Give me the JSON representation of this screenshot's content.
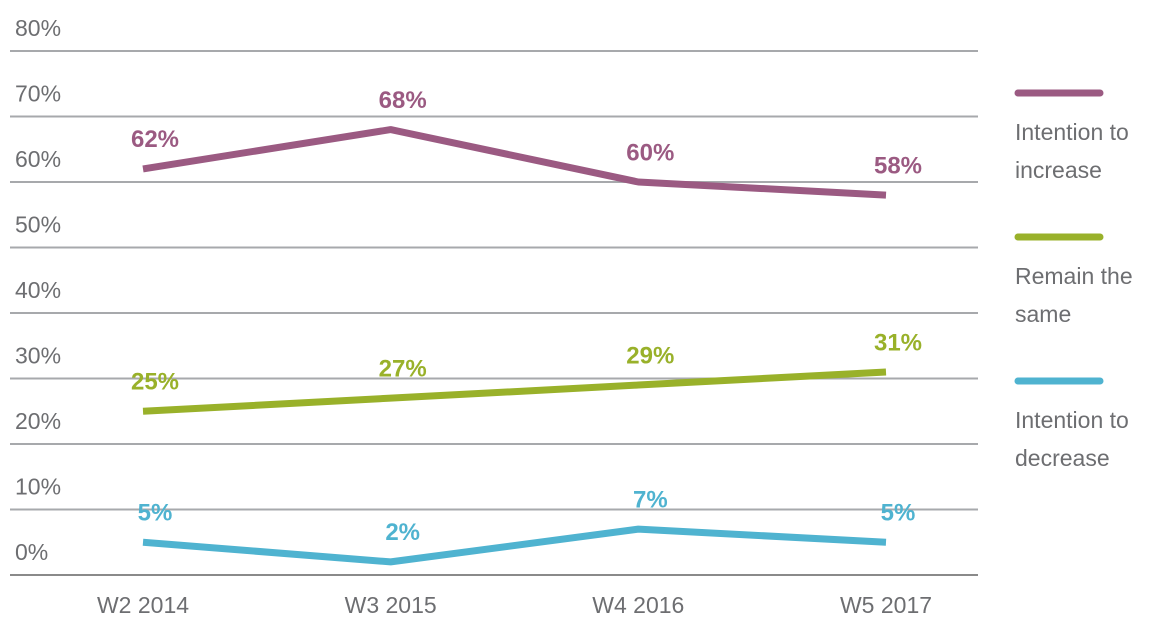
{
  "chart_data": {
    "type": "line",
    "categories": [
      "W2 2014",
      "W3 2015",
      "W4 2016",
      "W5 2017"
    ],
    "series": [
      {
        "name": "Intention to increase",
        "color": "#9b5a82",
        "values": [
          62,
          68,
          60,
          58
        ],
        "value_labels": [
          "62%",
          "68%",
          "60%",
          "58%"
        ]
      },
      {
        "name": "Remain the same",
        "color": "#99b12a",
        "values": [
          25,
          27,
          29,
          31
        ],
        "value_labels": [
          "25%",
          "27%",
          "29%",
          "31%"
        ]
      },
      {
        "name": "Intention to decrease",
        "color": "#4fb3d0",
        "values": [
          5,
          2,
          7,
          5
        ],
        "value_labels": [
          "5%",
          "2%",
          "7%",
          "5%"
        ]
      }
    ],
    "ylim": [
      0,
      80
    ],
    "yticks": [
      {
        "value": 0,
        "label": "0%"
      },
      {
        "value": 10,
        "label": "10%"
      },
      {
        "value": 20,
        "label": "20%"
      },
      {
        "value": 30,
        "label": "30%"
      },
      {
        "value": 40,
        "label": "40%"
      },
      {
        "value": 50,
        "label": "50%"
      },
      {
        "value": 60,
        "label": "60%"
      },
      {
        "value": 70,
        "label": "70%"
      },
      {
        "value": 80,
        "label": "80%"
      }
    ],
    "grid": true,
    "legend": "right"
  }
}
